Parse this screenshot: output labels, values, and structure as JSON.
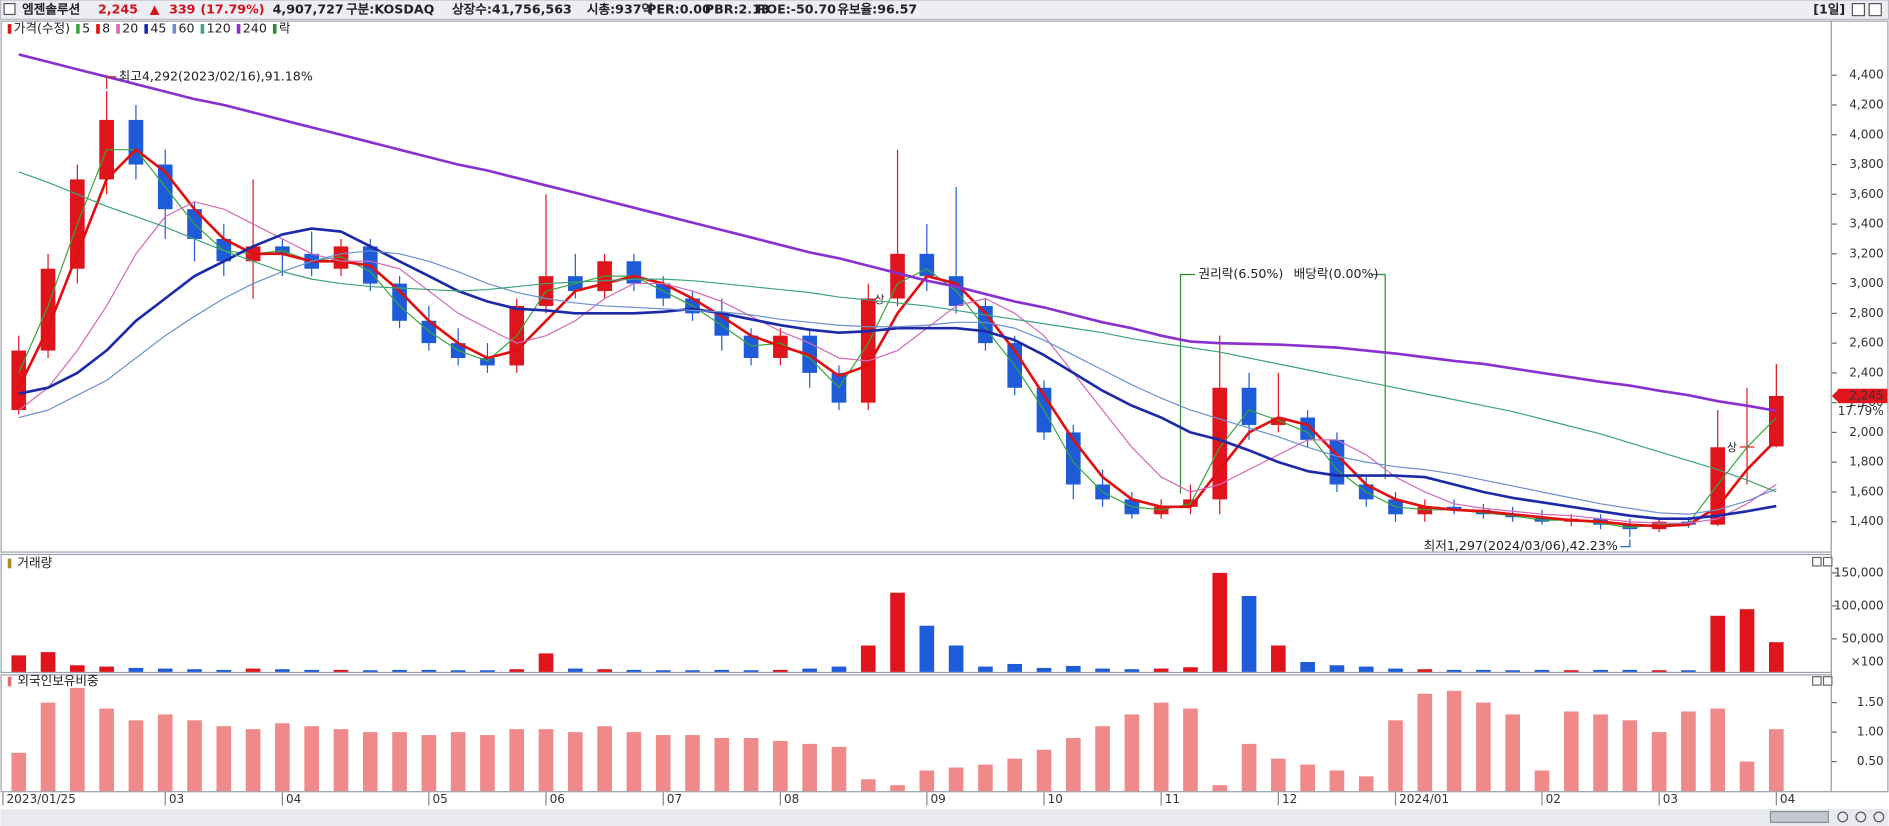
{
  "header": {
    "name": "엠젠솔루션",
    "price": "2,245",
    "arrow": "▲",
    "change": "339",
    "change_pct": "(17.79%)",
    "volume": "4,907,727",
    "market": "구분:KOSDAQ",
    "shares": "상장수:41,756,563",
    "market_cap": "시총:937억",
    "per": "PER:0.00",
    "pbr": "PBR:2.13",
    "roe": "ROE:-50.70",
    "reserve": "유보율:96.57",
    "period": "[1일]"
  },
  "chart_data": [
    {
      "type": "candlestick",
      "title": "가격(수정)",
      "up_color": "#e0141c",
      "down_color": "#1d5bd8",
      "open": [
        2150,
        2550,
        3100,
        3700,
        4100,
        3800,
        3500,
        3300,
        3150,
        3250,
        3200,
        3100,
        3250,
        3000,
        2750,
        2600,
        2500,
        2450,
        2850,
        3050,
        2950,
        3150,
        3000,
        2900,
        2800,
        2650,
        2500,
        2650,
        2400,
        2200,
        2900,
        3200,
        3050,
        2850,
        2600,
        2300,
        2000,
        1650,
        1550,
        1450,
        1500,
        1550,
        2300,
        2050,
        2100,
        1950,
        1650,
        1550,
        1450,
        1500,
        1480,
        1450,
        1430,
        1400,
        1420,
        1380,
        1350,
        1400,
        1380,
        1900,
        1906
      ],
      "high": [
        2650,
        3200,
        3800,
        4292,
        4200,
        3900,
        3550,
        3400,
        3700,
        3300,
        3350,
        3300,
        3300,
        3050,
        2850,
        2700,
        2600,
        2900,
        3600,
        3200,
        3200,
        3200,
        3050,
        2950,
        2900,
        2700,
        2700,
        2700,
        2450,
        3000,
        3900,
        3400,
        3650,
        2900,
        2650,
        2350,
        2050,
        1750,
        1600,
        1550,
        1650,
        2650,
        2400,
        2400,
        2150,
        2000,
        1700,
        1600,
        1550,
        1550,
        1520,
        1500,
        1480,
        1450,
        1450,
        1420,
        1420,
        1430,
        2150,
        2300,
        2460
      ],
      "low": [
        2120,
        2500,
        3000,
        3600,
        3700,
        3300,
        3150,
        3050,
        2900,
        3050,
        3050,
        3050,
        2950,
        2700,
        2550,
        2450,
        2400,
        2400,
        2800,
        2900,
        2900,
        2950,
        2850,
        2750,
        2550,
        2450,
        2450,
        2300,
        2150,
        2150,
        2850,
        2950,
        2800,
        2550,
        2250,
        1950,
        1550,
        1500,
        1420,
        1420,
        1450,
        1450,
        1950,
        2000,
        1900,
        1600,
        1500,
        1400,
        1400,
        1450,
        1420,
        1400,
        1380,
        1370,
        1350,
        1297,
        1330,
        1360,
        1370,
        1650,
        1900
      ],
      "close": [
        2550,
        3100,
        3700,
        4100,
        3800,
        3500,
        3300,
        3150,
        3250,
        3200,
        3100,
        3250,
        3000,
        2750,
        2600,
        2500,
        2450,
        2850,
        3050,
        2950,
        3150,
        3000,
        2900,
        2800,
        2650,
        2500,
        2650,
        2400,
        2200,
        2900,
        3200,
        3050,
        2850,
        2600,
        2300,
        2000,
        1650,
        1550,
        1450,
        1500,
        1550,
        2300,
        2050,
        2100,
        1950,
        1650,
        1550,
        1450,
        1500,
        1480,
        1450,
        1430,
        1400,
        1420,
        1380,
        1350,
        1400,
        1380,
        1900,
        1906,
        2245
      ],
      "moving_averages": [
        {
          "name": "5",
          "color": "#3aa43a",
          "values": [
            2400,
            2850,
            3400,
            3900,
            3900,
            3650,
            3400,
            3220,
            3200,
            3220,
            3150,
            3180,
            3080,
            2850,
            2680,
            2550,
            2480,
            2650,
            2950,
            3000,
            3050,
            3050,
            2950,
            2850,
            2720,
            2580,
            2600,
            2500,
            2300,
            2600,
            3000,
            3100,
            2950,
            2700,
            2450,
            2150,
            1800,
            1600,
            1500,
            1480,
            1520,
            1900,
            2150,
            2080,
            2000,
            1750,
            1600,
            1500,
            1480,
            1480,
            1460,
            1440,
            1410,
            1410,
            1390,
            1360,
            1380,
            1390,
            1650,
            1900,
            2100
          ]
        },
        {
          "name": "8",
          "color": "#e01010",
          "values": [
            2300,
            2700,
            3200,
            3700,
            3900,
            3750,
            3500,
            3300,
            3200,
            3200,
            3150,
            3150,
            3120,
            2950,
            2750,
            2600,
            2500,
            2550,
            2750,
            2950,
            3000,
            3050,
            3000,
            2900,
            2780,
            2650,
            2580,
            2520,
            2380,
            2450,
            2800,
            3050,
            3000,
            2800,
            2550,
            2250,
            1950,
            1700,
            1550,
            1500,
            1500,
            1750,
            2000,
            2100,
            2050,
            1850,
            1650,
            1550,
            1500,
            1480,
            1470,
            1450,
            1430,
            1410,
            1400,
            1380,
            1370,
            1380,
            1500,
            1750,
            1950
          ]
        },
        {
          "name": "20",
          "color": "#d468b8",
          "values": [
            2150,
            2300,
            2550,
            2850,
            3200,
            3450,
            3550,
            3500,
            3400,
            3300,
            3200,
            3150,
            3150,
            3100,
            2950,
            2800,
            2700,
            2600,
            2650,
            2750,
            2900,
            3000,
            3000,
            2950,
            2880,
            2780,
            2680,
            2600,
            2500,
            2480,
            2550,
            2700,
            2850,
            2900,
            2800,
            2650,
            2400,
            2150,
            1900,
            1700,
            1600,
            1650,
            1750,
            1850,
            1950,
            1950,
            1850,
            1700,
            1600,
            1520,
            1490,
            1470,
            1450,
            1440,
            1420,
            1400,
            1390,
            1390,
            1420,
            1520,
            1650
          ]
        },
        {
          "name": "45",
          "color": "#1c2aa8",
          "values": [
            2260,
            2300,
            2400,
            2550,
            2750,
            2900,
            3050,
            3150,
            3250,
            3330,
            3370,
            3350,
            3250,
            3150,
            3050,
            2950,
            2880,
            2830,
            2820,
            2800,
            2800,
            2800,
            2810,
            2830,
            2800,
            2760,
            2720,
            2690,
            2670,
            2680,
            2700,
            2700,
            2700,
            2680,
            2620,
            2520,
            2400,
            2280,
            2180,
            2100,
            2000,
            1950,
            1880,
            1800,
            1740,
            1710,
            1710,
            1710,
            1700,
            1650,
            1600,
            1560,
            1530,
            1500,
            1470,
            1440,
            1420,
            1420,
            1440,
            1470,
            1505
          ]
        },
        {
          "name": "60",
          "color": "#6c8fd0",
          "values": [
            2100,
            2150,
            2250,
            2350,
            2500,
            2650,
            2780,
            2900,
            3000,
            3080,
            3150,
            3200,
            3220,
            3200,
            3150,
            3080,
            3000,
            2940,
            2900,
            2870,
            2850,
            2840,
            2830,
            2820,
            2810,
            2790,
            2760,
            2740,
            2720,
            2710,
            2710,
            2720,
            2740,
            2740,
            2700,
            2620,
            2520,
            2420,
            2320,
            2230,
            2150,
            2090,
            2030,
            1970,
            1900,
            1840,
            1800,
            1770,
            1750,
            1720,
            1680,
            1640,
            1600,
            1560,
            1520,
            1490,
            1460,
            1450,
            1480,
            1540,
            1620
          ]
        },
        {
          "name": "120",
          "color": "#3ea27a",
          "values": [
            3750,
            3680,
            3600,
            3520,
            3450,
            3380,
            3300,
            3220,
            3150,
            3080,
            3030,
            3000,
            2980,
            2970,
            2960,
            2950,
            2960,
            2980,
            3000,
            3010,
            3020,
            3030,
            3030,
            3020,
            3000,
            2980,
            2960,
            2940,
            2910,
            2890,
            2870,
            2850,
            2820,
            2790,
            2760,
            2730,
            2700,
            2670,
            2630,
            2600,
            2570,
            2540,
            2500,
            2460,
            2420,
            2380,
            2340,
            2300,
            2260,
            2220,
            2180,
            2140,
            2090,
            2040,
            1990,
            1930,
            1870,
            1810,
            1750,
            1680,
            1600
          ]
        },
        {
          "name": "240",
          "color": "#8a30d0",
          "values": [
            4540,
            4490,
            4440,
            4390,
            4340,
            4290,
            4240,
            4200,
            4150,
            4100,
            4050,
            4000,
            3950,
            3900,
            3850,
            3800,
            3760,
            3710,
            3660,
            3610,
            3560,
            3510,
            3460,
            3410,
            3360,
            3310,
            3260,
            3210,
            3170,
            3120,
            3070,
            3020,
            2980,
            2930,
            2880,
            2840,
            2790,
            2740,
            2700,
            2650,
            2610,
            2600,
            2595,
            2590,
            2580,
            2570,
            2550,
            2530,
            2505,
            2480,
            2460,
            2430,
            2400,
            2370,
            2340,
            2315,
            2280,
            2250,
            2210,
            2180,
            2145
          ]
        }
      ],
      "event_legend": {
        "name": "락",
        "color": "#2e8b2e"
      },
      "events": [
        "권리락(6.50%)",
        "배당락(0.00%)"
      ],
      "limit_up_marks": [
        "상",
        "상"
      ],
      "high_note": "최고4,292(2023/02/16),91.18%",
      "low_note": "최저1,297(2024/03/06),42.23%",
      "last_price": {
        "value": 2245,
        "label": "2,245"
      },
      "last_change": "17.79%",
      "ylim": [
        1200,
        4760
      ],
      "yticks": [
        {
          "value": 1400,
          "label": "1,400"
        },
        {
          "value": 1600,
          "label": "1,600"
        },
        {
          "value": 1800,
          "label": "1,800"
        },
        {
          "value": 2000,
          "label": "2,000"
        },
        {
          "value": 2200,
          "label": "2,200"
        },
        {
          "value": 2400,
          "label": "2,400"
        },
        {
          "value": 2600,
          "label": "2,600"
        },
        {
          "value": 2800,
          "label": "2,800"
        },
        {
          "value": 3000,
          "label": "3,000"
        },
        {
          "value": 3200,
          "label": "3,200"
        },
        {
          "value": 3400,
          "label": "3,400"
        },
        {
          "value": 3600,
          "label": "3,600"
        },
        {
          "value": 3800,
          "label": "3,800"
        },
        {
          "value": 4000,
          "label": "4,000"
        },
        {
          "value": 4200,
          "label": "4,200"
        },
        {
          "value": 4400,
          "label": "4,400"
        }
      ]
    },
    {
      "type": "bar",
      "title": "거래량",
      "values": [
        25000,
        30000,
        10000,
        8000,
        6000,
        5000,
        4000,
        3000,
        5000,
        4000,
        3000,
        3000,
        2500,
        3000,
        3000,
        2500,
        2500,
        4000,
        28000,
        5000,
        4000,
        3000,
        2500,
        2500,
        3000,
        2500,
        3000,
        5000,
        8000,
        40000,
        120000,
        70000,
        40000,
        8000,
        12000,
        6000,
        9000,
        5000,
        4000,
        5000,
        7000,
        150000,
        115000,
        40000,
        15000,
        10000,
        8000,
        5000,
        4000,
        3000,
        3000,
        2500,
        3000,
        2500,
        3000,
        3000,
        2500,
        2500,
        85000,
        95000,
        45000
      ],
      "unit_label": "×100",
      "ylim": [
        0,
        177000
      ],
      "yticks": [
        {
          "value": 50000,
          "label": "50,000"
        },
        {
          "value": 100000,
          "label": "100,000"
        },
        {
          "value": 150000,
          "label": "150,000"
        }
      ]
    },
    {
      "type": "bar",
      "title": "외국인보유비중",
      "color": "#f08a8a",
      "values": [
        0.65,
        1.5,
        1.75,
        1.4,
        1.2,
        1.3,
        1.2,
        1.1,
        1.05,
        1.15,
        1.1,
        1.05,
        1.0,
        1.0,
        0.95,
        1.0,
        0.95,
        1.05,
        1.05,
        1.0,
        1.1,
        1.0,
        0.95,
        0.95,
        0.9,
        0.9,
        0.85,
        0.8,
        0.75,
        0.2,
        0.1,
        0.35,
        0.4,
        0.45,
        0.55,
        0.7,
        0.9,
        1.1,
        1.3,
        1.5,
        1.4,
        0.1,
        0.8,
        0.55,
        0.45,
        0.35,
        0.25,
        1.2,
        1.65,
        1.7,
        1.5,
        1.3,
        0.35,
        1.35,
        1.3,
        1.2,
        1.0,
        1.35,
        1.4,
        0.5,
        1.05
      ],
      "categories": [
        "2023/01/25",
        null,
        null,
        null,
        null,
        "03",
        null,
        null,
        null,
        "04",
        null,
        null,
        null,
        null,
        "05",
        null,
        null,
        null,
        "06",
        null,
        null,
        null,
        "07",
        null,
        null,
        null,
        "08",
        null,
        null,
        null,
        null,
        "09",
        null,
        null,
        null,
        "10",
        null,
        null,
        null,
        "11",
        null,
        null,
        null,
        "12",
        null,
        null,
        null,
        "2024/01",
        null,
        null,
        null,
        null,
        "02",
        null,
        null,
        null,
        "03",
        null,
        null,
        null,
        "04"
      ],
      "ylim": [
        0,
        1.96
      ],
      "yticks": [
        {
          "value": 0.5,
          "label": "0.50"
        },
        {
          "value": 1.0,
          "label": "1.00"
        },
        {
          "value": 1.5,
          "label": "1.50"
        }
      ]
    }
  ]
}
